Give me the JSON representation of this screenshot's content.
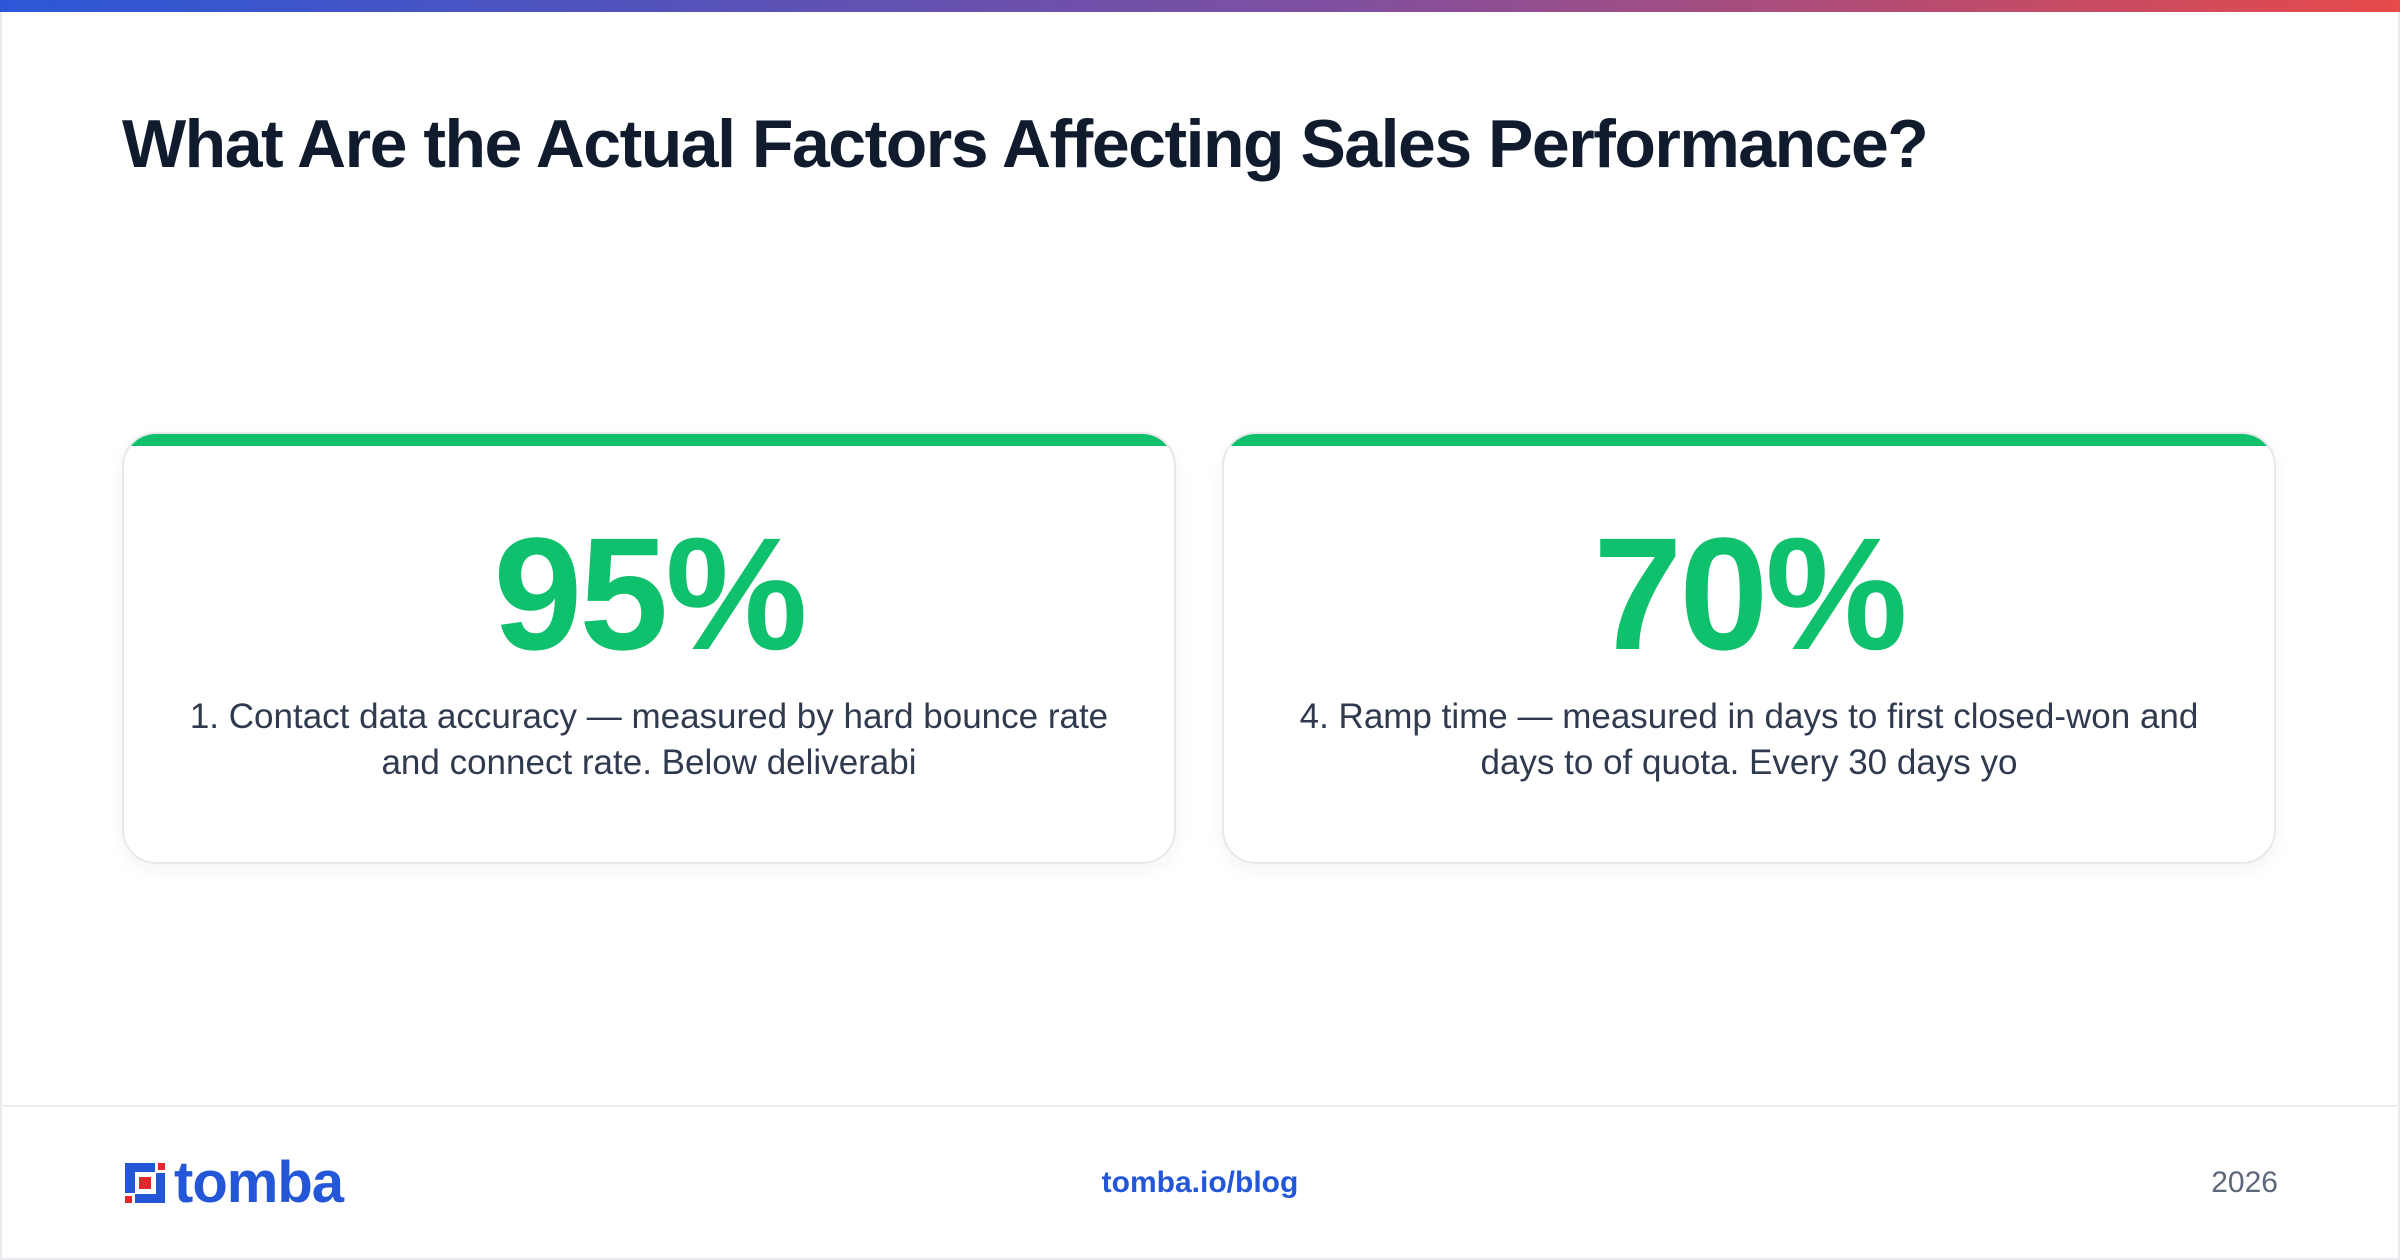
{
  "header": {
    "title": "What Are the Actual Factors Affecting Sales Performance?"
  },
  "cards": [
    {
      "value": "95%",
      "description": "1. Contact data accuracy — measured by hard bounce rate and connect rate. Below deliverabi"
    },
    {
      "value": "70%",
      "description": "4. Ramp time — measured in days to first closed-won and days to of quota. Every 30 days yo"
    }
  ],
  "footer": {
    "logo_text": "tomba",
    "link": "tomba.io/blog",
    "year": "2026"
  },
  "colors": {
    "accent_green": "#0fc06d",
    "brand_blue": "#2357d8",
    "brand_red": "#e5262f",
    "title": "#111b2e",
    "gradient": [
      "#2b57d6",
      "#7e4fa0",
      "#e64a4a"
    ]
  },
  "icons": {
    "logo_mark": "tomba-logo-icon"
  }
}
